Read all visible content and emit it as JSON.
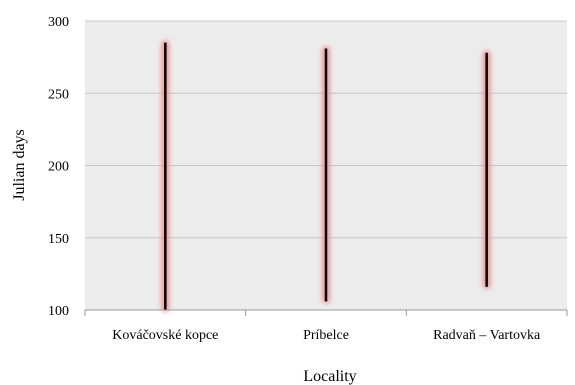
{
  "chart_data": {
    "type": "bar",
    "subtype": "floating range bars",
    "title": "",
    "xlabel": "Locality",
    "ylabel": "Julian days",
    "ylim": [
      100,
      300
    ],
    "yticks": [
      100,
      150,
      200,
      250,
      300
    ],
    "grid": true,
    "legend": "none",
    "categories": [
      "Kováčovské kopce",
      "Príbelce",
      "Radvaň – Vartovka"
    ],
    "ranges": [
      {
        "category": "Kováčovské kopce",
        "low": 100,
        "high": 285
      },
      {
        "category": "Príbelce",
        "low": 106,
        "high": 281
      },
      {
        "category": "Radvaň – Vartovka",
        "low": 116,
        "high": 278
      }
    ],
    "colors": {
      "plot_background": "#ececec",
      "gridline": "#c8c8c8",
      "bar": "#000000",
      "bar_glow": "#ee8a8a"
    }
  }
}
